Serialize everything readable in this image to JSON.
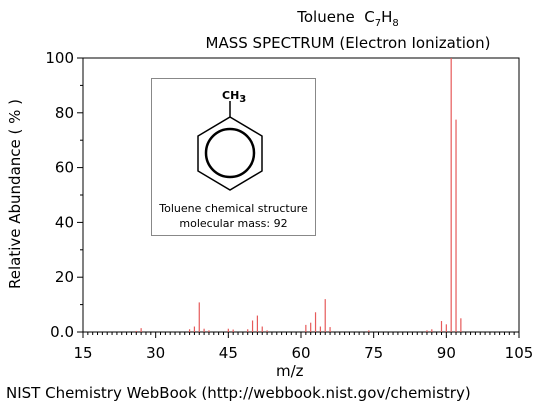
{
  "header": {
    "compound": "Toluene",
    "formula_c": "C",
    "formula_c_count": "7",
    "formula_h": "H",
    "formula_h_count": "8",
    "subtitle": "MASS SPECTRUM (Electron Ionization)"
  },
  "footer": "NIST Chemistry WebBook (http://webbook.nist.gov/chemistry)",
  "inset": {
    "group_label": "CH",
    "group_sub": "3",
    "caption_line1": "Toluene chemical structure",
    "caption_line2": "molecular mass: 92"
  },
  "colors": {
    "peaks": "#e65a5a",
    "axes": "#000000",
    "grid": "#000000"
  },
  "chart_data": {
    "type": "bar",
    "title": "MASS SPECTRUM (Electron Ionization)",
    "xlabel": "m/z",
    "ylabel": "Relative  Abundance ( % )",
    "xlim": [
      15,
      105
    ],
    "ylim": [
      0,
      100
    ],
    "xticks": [
      "15",
      "30",
      "45",
      "60",
      "75",
      "90",
      "105"
    ],
    "yticks": [
      "0.0",
      "20",
      "40",
      "60",
      "80",
      "100"
    ],
    "x": [
      26,
      27,
      37,
      38,
      39,
      40,
      41,
      45,
      46,
      49,
      50,
      51,
      52,
      53,
      61,
      62,
      63,
      64,
      65,
      66,
      74,
      86,
      87,
      89,
      90,
      91,
      92,
      93
    ],
    "values": [
      0.4,
      1.4,
      1.0,
      2.0,
      10.8,
      1.2,
      0.6,
      1.2,
      0.9,
      1.0,
      4.2,
      6.0,
      2.0,
      0.6,
      2.6,
      3.4,
      7.2,
      2.0,
      12.0,
      1.8,
      0.6,
      0.6,
      1.0,
      4.0,
      2.8,
      100,
      77.5,
      5.0
    ]
  }
}
